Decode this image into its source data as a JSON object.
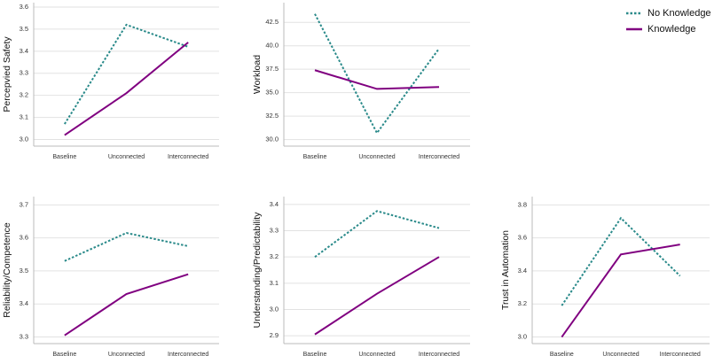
{
  "chart_data": [
    {
      "type": "line",
      "y_label": "Percepvied Safety",
      "categories": [
        "Baseline",
        "Unconnected",
        "Interconnected"
      ],
      "series": [
        {
          "name": "No Knowledge",
          "color": "#2a8a8a",
          "dash": "dotted",
          "values": [
            3.07,
            3.52,
            3.42
          ]
        },
        {
          "name": "Knowledge",
          "color": "#800080",
          "dash": "solid",
          "values": [
            3.02,
            3.21,
            3.44
          ]
        }
      ],
      "ylim": [
        2.97,
        3.62
      ],
      "yticks": [
        {
          "value": 3,
          "label": "3.0"
        },
        3.1,
        3.2,
        3.3,
        3.4,
        3.5,
        3.6
      ],
      "grid": true,
      "legend": "upper right"
    },
    {
      "type": "line",
      "y_label": "Workload",
      "categories": [
        "Baseline",
        "Unconnected",
        "Interconnected"
      ],
      "series": [
        {
          "name": "No Knowledge",
          "color": "#2a8a8a",
          "dash": "dotted",
          "values": [
            43.4,
            30.7,
            39.7
          ]
        },
        {
          "name": "Knowledge",
          "color": "#800080",
          "dash": "solid",
          "values": [
            37.4,
            35.4,
            35.6
          ]
        }
      ],
      "ylim": [
        29.3,
        44.6
      ],
      "yticks": [
        {
          "value": 30,
          "label": "30.0"
        },
        32.5,
        {
          "value": 35,
          "label": "35.0"
        },
        37.5,
        {
          "value": 40,
          "label": "40.0"
        },
        42.5
      ],
      "grid": true
    },
    {
      "type": "line",
      "y_label": "Reliability/Competence",
      "categories": [
        "Baseline",
        "Unconnected",
        "Interconnected"
      ],
      "series": [
        {
          "name": "No Knowledge",
          "color": "#2a8a8a",
          "dash": "dotted",
          "values": [
            3.53,
            3.615,
            3.575
          ]
        },
        {
          "name": "Knowledge",
          "color": "#800080",
          "dash": "solid",
          "values": [
            3.305,
            3.43,
            3.49
          ]
        }
      ],
      "ylim": [
        3.28,
        3.725
      ],
      "yticks": [
        3.3,
        3.4,
        3.5,
        3.6,
        3.7
      ],
      "grid": true
    },
    {
      "type": "line",
      "y_label": "Understanding/Predictability",
      "categories": [
        "Baseline",
        "Unconnected",
        "Interconnected"
      ],
      "series": [
        {
          "name": "No Knowledge",
          "color": "#2a8a8a",
          "dash": "dotted",
          "values": [
            3.2,
            3.375,
            3.31
          ]
        },
        {
          "name": "Knowledge",
          "color": "#800080",
          "dash": "solid",
          "values": [
            2.905,
            3.06,
            3.2
          ]
        }
      ],
      "ylim": [
        2.87,
        3.43
      ],
      "yticks": [
        2.9,
        {
          "value": 3,
          "label": "3.0"
        },
        3.1,
        3.2,
        3.3,
        3.4
      ],
      "grid": true
    },
    {
      "type": "line",
      "y_label": "Trust in Automation",
      "categories": [
        "Baseline",
        "Unconnected",
        "Interconnected"
      ],
      "series": [
        {
          "name": "No Knowledge",
          "color": "#2a8a8a",
          "dash": "dotted",
          "values": [
            3.19,
            3.72,
            3.37
          ]
        },
        {
          "name": "Knowledge",
          "color": "#800080",
          "dash": "solid",
          "values": [
            3.0,
            3.5,
            3.56
          ]
        }
      ],
      "ylim": [
        2.96,
        3.85
      ],
      "yticks": [
        {
          "value": 3,
          "label": "3.0"
        },
        3.2,
        3.4,
        3.6,
        3.8
      ],
      "grid": true
    }
  ]
}
